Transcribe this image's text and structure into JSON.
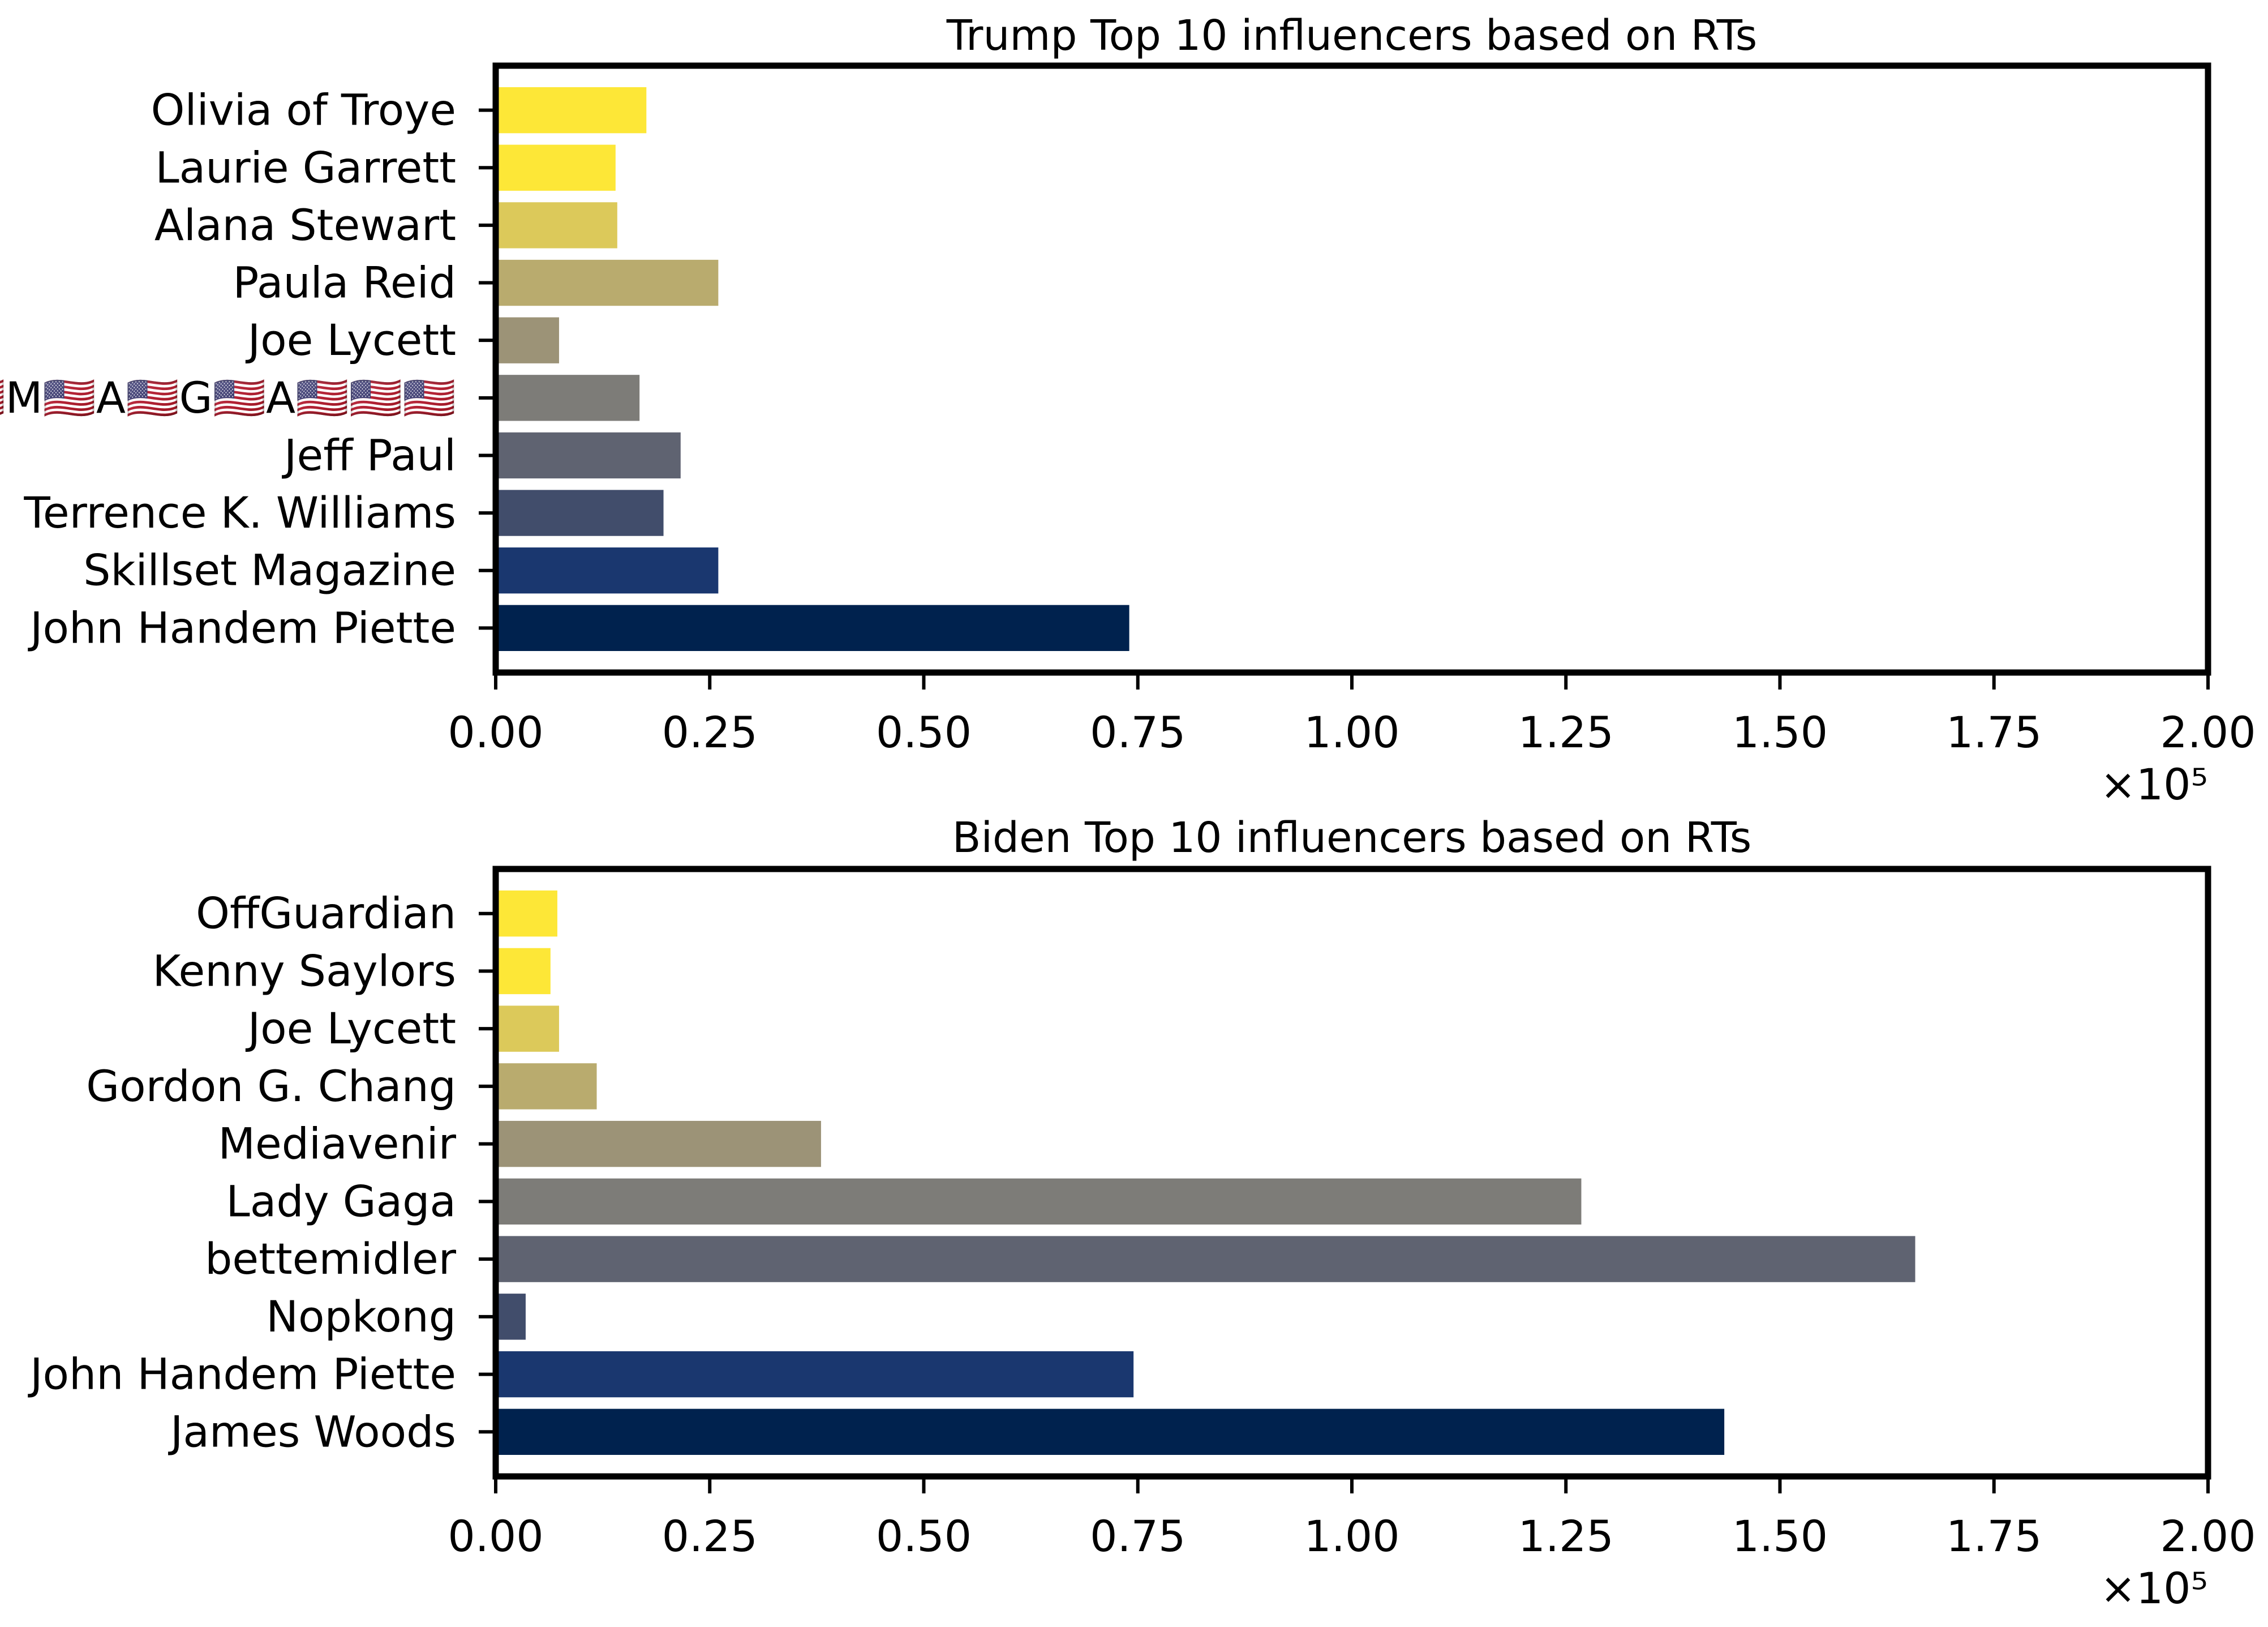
{
  "colors": {
    "background": "#ffffff",
    "frame": "#000000",
    "bars_top_to_bottom": [
      "#fde737",
      "#fde737",
      "#dcc95a",
      "#b9ab6e",
      "#9c9377",
      "#7d7c78",
      "#5f6371",
      "#414d6b",
      "#1a376f",
      "#00224e"
    ]
  },
  "chart_data": [
    {
      "type": "bar",
      "orientation": "horizontal",
      "title": "Trump Top 10 influencers based on RTs",
      "xlabel": "",
      "ylabel": "",
      "xlim": [
        0,
        200000
      ],
      "xtick_values": [
        0,
        25000,
        50000,
        75000,
        100000,
        125000,
        150000,
        175000,
        200000
      ],
      "xtick_labels": [
        "0.00",
        "0.25",
        "0.50",
        "0.75",
        "1.00",
        "1.25",
        "1.50",
        "1.75",
        "2.00"
      ],
      "offset_label": "×10⁵",
      "grid": false,
      "categories": [
        "John Handem Piette",
        "Skillset Magazine",
        "Terrence K. Williams",
        "Jeff Paul",
        "🇺🇸🇺🇸🇺🇸M🇺🇸A🇺🇸G🇺🇸A🇺🇸🇺🇸🇺🇸",
        "Joe Lycett",
        "Paula Reid",
        "Alana Stewart",
        "Laurie Garrett",
        "Olivia of Troye"
      ],
      "values": [
        74000,
        26000,
        19600,
        21600,
        16800,
        7400,
        26000,
        14200,
        14000,
        17600
      ]
    },
    {
      "type": "bar",
      "orientation": "horizontal",
      "title": "Biden Top 10 influencers based on RTs",
      "xlabel": "",
      "ylabel": "",
      "xlim": [
        0,
        200000
      ],
      "xtick_values": [
        0,
        25000,
        50000,
        75000,
        100000,
        125000,
        150000,
        175000,
        200000
      ],
      "xtick_labels": [
        "0.00",
        "0.25",
        "0.50",
        "0.75",
        "1.00",
        "1.25",
        "1.50",
        "1.75",
        "2.00"
      ],
      "offset_label": "×10⁵",
      "grid": false,
      "categories": [
        "James Woods",
        "John Handem Piette",
        "Nopkong",
        "bettemidler",
        "Lady Gaga",
        "Mediavenir",
        "Gordon G. Chang",
        "Joe Lycett",
        "Kenny Saylors",
        "OffGuardian"
      ],
      "values": [
        143500,
        74500,
        3500,
        165800,
        126800,
        38000,
        11800,
        7400,
        6400,
        7200
      ]
    }
  ]
}
